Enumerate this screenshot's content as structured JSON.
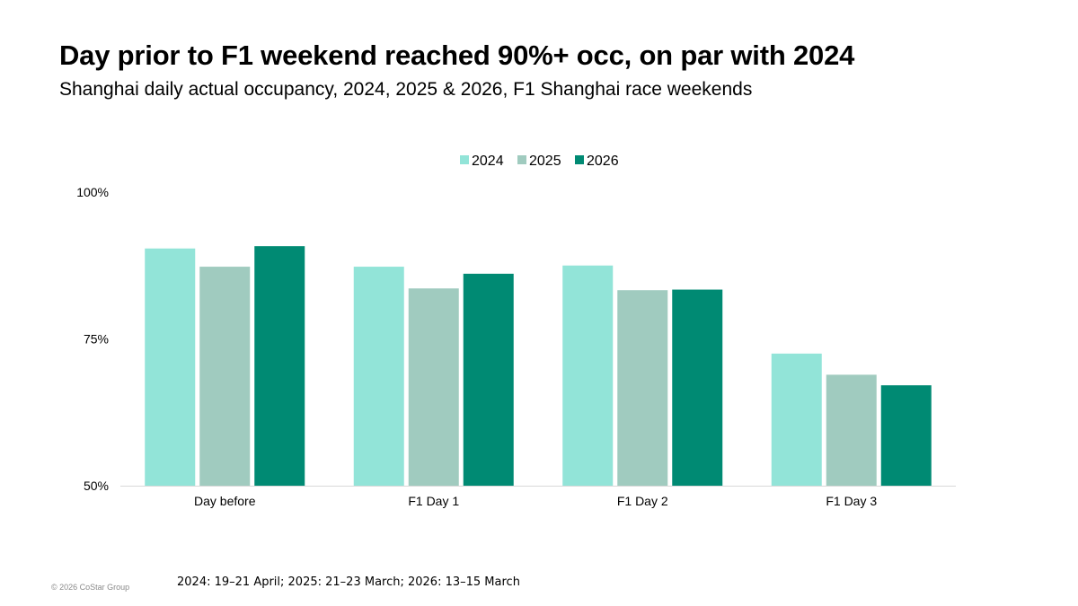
{
  "title": "Day prior to F1 weekend reached 90%+ occ, on par with 2024",
  "subtitle": "Shanghai daily actual occupancy, 2024, 2025 & 2026, F1 Shanghai race weekends",
  "footnote": "2024: 19–21 April; 2025: 21–23 March; 2026: 13–15 March",
  "copyright": "© 2026 CoStar Group",
  "colors": {
    "2024": "#92e4d8",
    "2025": "#a0cbbf",
    "2026": "#008a73",
    "axis": "#d9d9d9"
  },
  "chart_data": {
    "type": "bar",
    "categories": [
      "Day before",
      "F1 Day 1",
      "F1 Day 2",
      "F1 Day 3"
    ],
    "series": [
      {
        "name": "2024",
        "values": [
          90.4,
          87.3,
          87.5,
          72.5
        ]
      },
      {
        "name": "2025",
        "values": [
          87.3,
          83.6,
          83.3,
          68.9
        ]
      },
      {
        "name": "2026",
        "values": [
          90.8,
          86.1,
          83.4,
          67.1
        ]
      }
    ],
    "ylim": [
      50,
      100
    ],
    "yticks": [
      50,
      75,
      100
    ],
    "ytick_labels": [
      "50%",
      "75%",
      "100%"
    ],
    "legend": "top-center",
    "grid": false,
    "xlabel": "",
    "ylabel": ""
  }
}
